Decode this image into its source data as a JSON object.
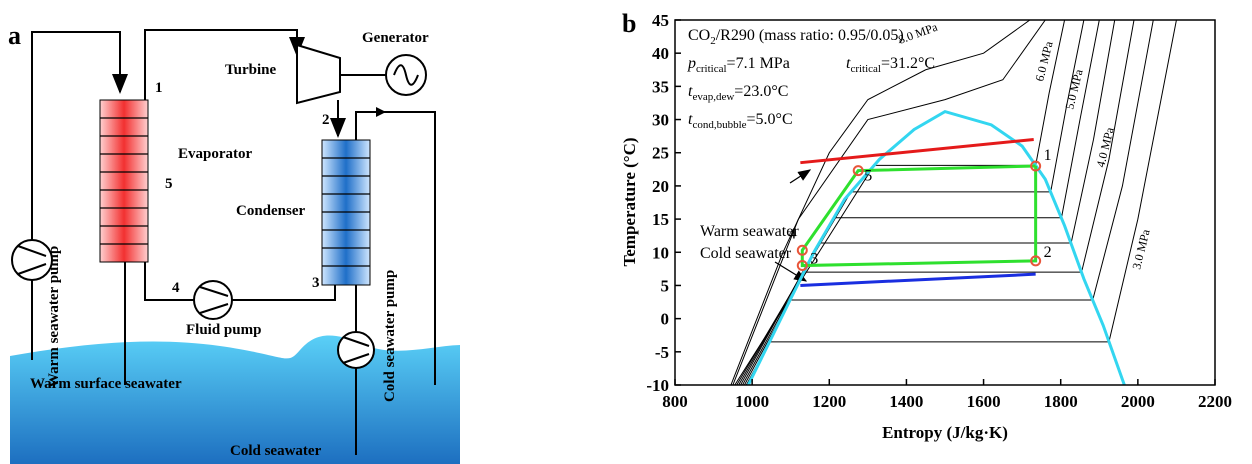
{
  "diagram": {
    "panel_label": "a",
    "labels": {
      "turbine": "Turbine",
      "generator": "Generator",
      "evaporator": "Evaporator",
      "condenser": "Condenser",
      "fluid_pump": "Fluid pump",
      "warm_pump": "Warm seawater pump",
      "cold_pump": "Cold seawater pump",
      "warm_surface": "Warm surface seawater",
      "cold_seawater": "Cold seawater"
    },
    "state_labels": [
      "1",
      "2",
      "3",
      "4",
      "5"
    ]
  },
  "chart_data": {
    "type": "line",
    "panel_label": "b",
    "xlabel": "Entropy (J/kg·K)",
    "ylabel": "Temperature (°C)",
    "xlim": [
      800,
      2200
    ],
    "xticks": [
      800,
      1000,
      1200,
      1400,
      1600,
      1800,
      2000,
      2200
    ],
    "ylim": [
      -10,
      45
    ],
    "yticks": [
      -10,
      -5,
      0,
      5,
      10,
      15,
      20,
      25,
      30,
      35,
      40,
      45
    ],
    "annotations": [
      [
        {
          "main": "CO",
          "sub": "2",
          "rest": "/R290 (mass ratio: 0.95/0.05)"
        }
      ],
      [
        {
          "main": "p",
          "sub": "critical",
          "rest": "=7.1 MPa"
        },
        {
          "main": "t",
          "sub": "critical",
          "rest": "=31.2°C"
        }
      ],
      [
        {
          "main": "t",
          "sub": "evap,dew",
          "rest": "=23.0°C"
        }
      ],
      [
        {
          "main": "t",
          "sub": "cond,bubble",
          "rest": "=5.0°C"
        }
      ]
    ],
    "series": [
      {
        "color": "#000000",
        "x": [
          945,
          1080,
          1200,
          1300,
          1450,
          1600,
          1720
        ],
        "values": [
          -10,
          10,
          25,
          33,
          37.5,
          40,
          45
        ],
        "name": "8.0 MPa"
      },
      {
        "color": "#000000",
        "x": [
          950,
          1120,
          1300,
          1500,
          1650,
          1760
        ],
        "values": [
          -10,
          15,
          30,
          33,
          36,
          45
        ]
      },
      {
        "color": "#000000",
        "x": [
          955,
          1316,
          1735,
          1770,
          1810
        ],
        "values": [
          -10,
          23.1,
          23.1,
          34,
          45
        ],
        "name": "6.0 MPa"
      },
      {
        "color": "#000000",
        "x": [
          960,
          1256,
          1774,
          1815,
          1860
        ],
        "values": [
          -10,
          19.1,
          19.1,
          32,
          45
        ]
      },
      {
        "color": "#000000",
        "x": [
          965,
          1212,
          1802,
          1850,
          1900
        ],
        "values": [
          -10,
          15.2,
          15.2,
          30,
          45
        ],
        "name": "5.0 MPa"
      },
      {
        "color": "#000000",
        "x": [
          970,
          1172,
          1827,
          1885,
          1940
        ],
        "values": [
          -10,
          11.4,
          11.4,
          27,
          45
        ]
      },
      {
        "color": "#000000",
        "x": [
          975,
          1134,
          1854,
          1925,
          1990
        ],
        "values": [
          -10,
          7,
          7,
          24,
          45
        ],
        "name": "4.0 MPa"
      },
      {
        "color": "#000000",
        "x": [
          980,
          1098,
          1883,
          1960,
          2040
        ],
        "values": [
          -10,
          2.8,
          2.8,
          20,
          45
        ]
      },
      {
        "color": "#000000",
        "x": [
          985,
          1045,
          1925,
          2000,
          2100
        ],
        "values": [
          -10,
          -3.5,
          -3.5,
          15,
          45
        ],
        "name": "3.0 MPa"
      },
      {
        "color": "#33d6f0",
        "x": [
          990,
          1100,
          1160,
          1240,
          1330,
          1420,
          1500,
          1620,
          1700,
          1760,
          1810,
          1860,
          1910,
          1965
        ],
        "values": [
          -10,
          3,
          10,
          18,
          24,
          28.5,
          31.2,
          29.2,
          26,
          21,
          14,
          6,
          -1,
          -10
        ]
      },
      {
        "color": "#2ee02e",
        "x": [
          1735,
          1735,
          1130,
          1130,
          1275,
          1735
        ],
        "values": [
          23,
          8.7,
          8,
          10.3,
          22.3,
          23
        ]
      },
      {
        "color": "#e41a1a",
        "x": [
          1125,
          1730
        ],
        "values": [
          23.5,
          27
        ],
        "name": "Warm seawater"
      },
      {
        "color": "#1a2ee0",
        "x": [
          1125,
          1735
        ],
        "values": [
          5,
          6.7
        ],
        "name": "Cold seawater"
      }
    ],
    "state_points": {
      "labels": [
        "1",
        "2",
        "3",
        "4",
        "5"
      ],
      "x": [
        1735,
        1735,
        1130,
        1130,
        1275
      ],
      "values": [
        23,
        8.7,
        8,
        10.3,
        22.3
      ],
      "color": "#e8553a"
    }
  }
}
